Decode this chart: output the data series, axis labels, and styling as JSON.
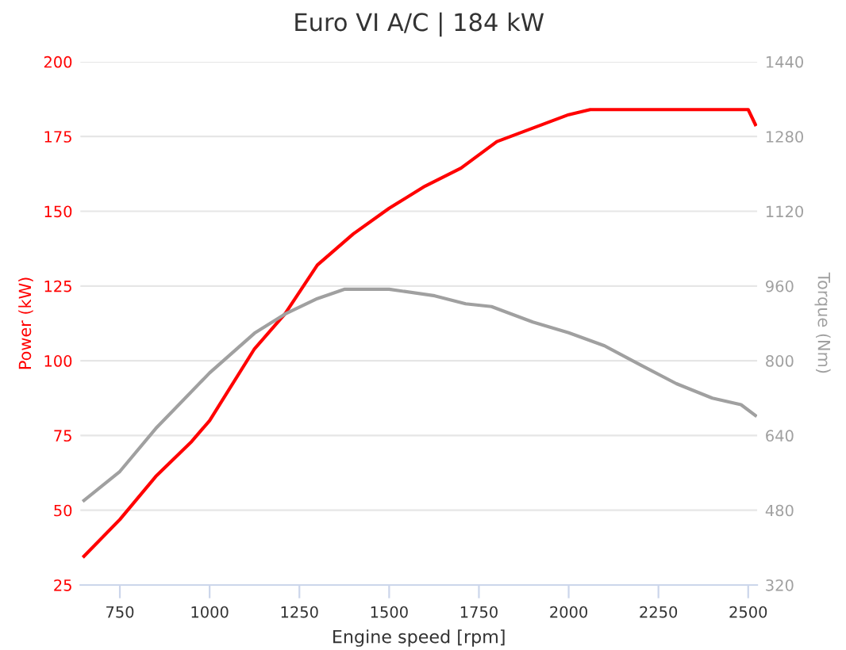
{
  "chart_data": {
    "type": "line",
    "title": "Euro VI A/C | 184 kW",
    "xlabel": "Engine speed [rpm]",
    "ylabel": "Power (kW)",
    "y2label": "Torque (Nm)",
    "xlim": [
      640,
      2525
    ],
    "xticks": [
      750,
      1000,
      1250,
      1500,
      1750,
      2000,
      2250,
      2500
    ],
    "ylim": [
      25,
      200
    ],
    "yticks": [
      25,
      50,
      75,
      100,
      125,
      150,
      175,
      200
    ],
    "y2lim": [
      320,
      1440
    ],
    "y2ticks": [
      320,
      480,
      640,
      800,
      960,
      1120,
      1280,
      1440
    ],
    "grid": "y",
    "marker": "none",
    "line_style": "solid",
    "series": [
      {
        "color": "#ff0000",
        "x": [
          650,
          750,
          850,
          950,
          1000,
          1125,
          1210,
          1300,
          1400,
          1500,
          1600,
          1700,
          1800,
          1900,
          2000,
          2060,
          2500,
          2520
        ],
        "values": [
          34.6,
          46.9,
          61.3,
          73,
          80,
          104,
          115.7,
          132,
          142.4,
          151,
          158.4,
          164.4,
          173.3,
          177.8,
          182.3,
          184,
          184,
          179
        ]
      },
      {
        "color": "#a0a0a0",
        "axis": "y2",
        "x": [
          650,
          750,
          850,
          1000,
          1125,
          1210,
          1300,
          1375,
          1500,
          1627,
          1713,
          1785,
          1900,
          2000,
          2100,
          2200,
          2300,
          2400,
          2480,
          2520
        ],
        "values": [
          501,
          563,
          655,
          774,
          859,
          900,
          933,
          953,
          953,
          939,
          922,
          916,
          883,
          860,
          832,
          791,
          751,
          720,
          706,
          683
        ]
      }
    ]
  }
}
